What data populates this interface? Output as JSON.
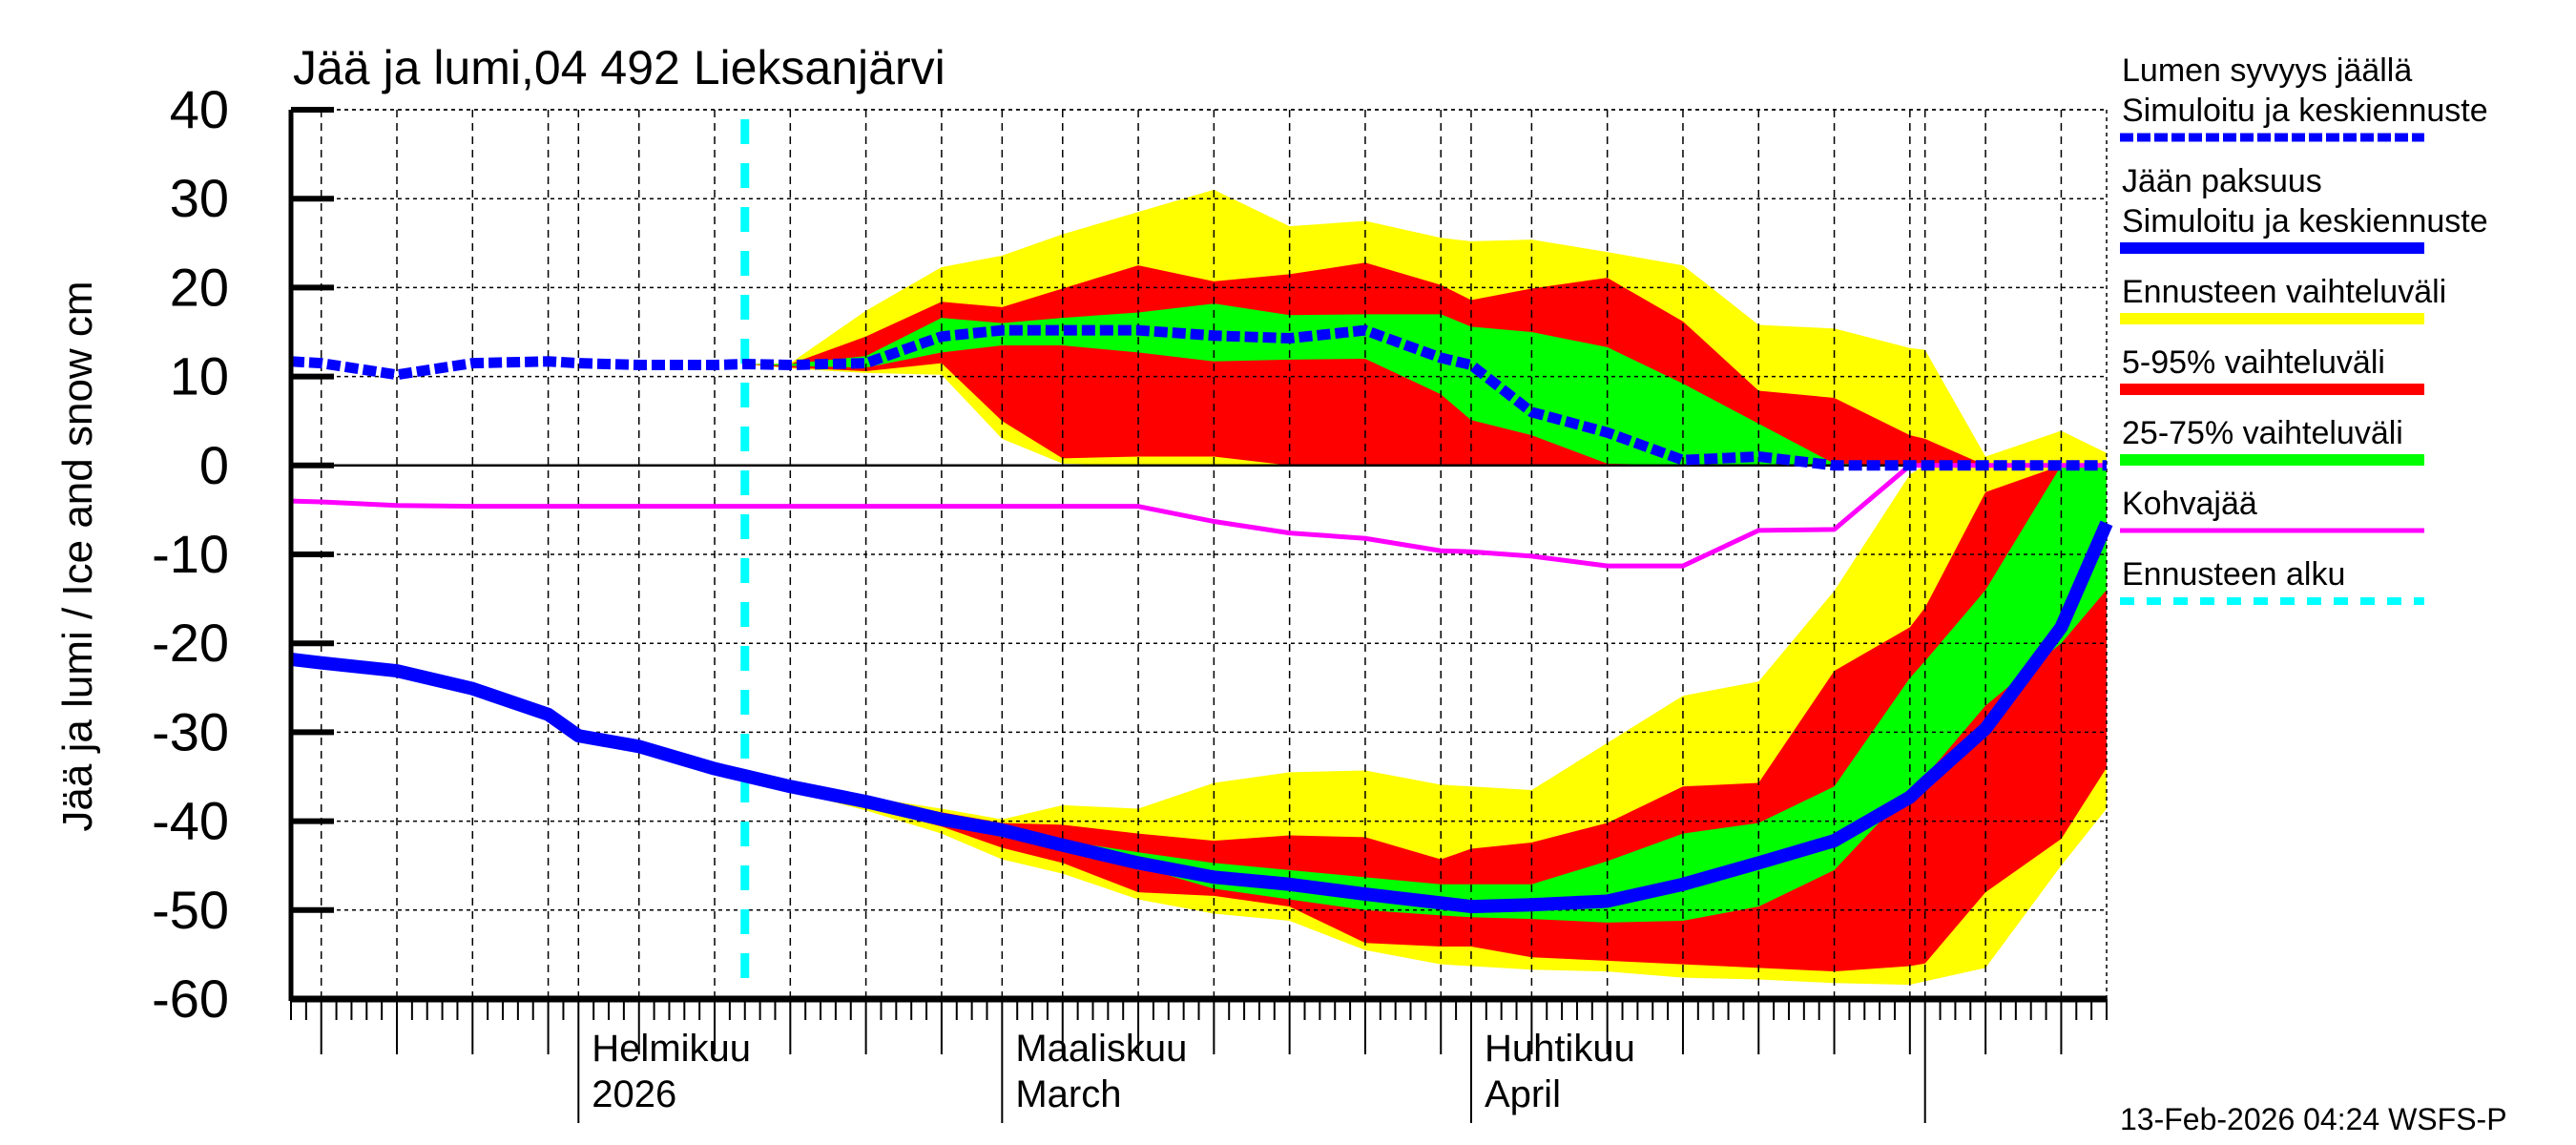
{
  "chart_data": {
    "type": "area",
    "title": "Jää ja lumi,04 492 Lieksanjärvi",
    "ylabel": "Jää ja lumi / Ice and snow    cm",
    "ylim": [
      -60,
      40
    ],
    "yticks": [
      "40",
      "30",
      "20",
      "10",
      "0",
      "-10",
      "-20",
      "-30",
      "-40",
      "-50",
      "-60"
    ],
    "xlim": [
      "2026-01-13",
      "2026-05-13"
    ],
    "grid": true,
    "legend_placement": "right",
    "month_labels": [
      {
        "date": "2026-02-01",
        "line1": "Helmikuu",
        "line2": "2026"
      },
      {
        "date": "2026-03-01",
        "line1": "Maaliskuu",
        "line2": "March"
      },
      {
        "date": "2026-04-01",
        "line1": "Huhtikuu",
        "line2": "April"
      }
    ],
    "forecast_start": "2026-02-12",
    "x": [
      "2026-01-13",
      "2026-01-15",
      "2026-01-20",
      "2026-01-25",
      "2026-01-30",
      "2026-02-01",
      "2026-02-05",
      "2026-02-10",
      "2026-02-12",
      "2026-02-15",
      "2026-02-20",
      "2026-02-25",
      "2026-03-01",
      "2026-03-05",
      "2026-03-10",
      "2026-03-15",
      "2026-03-20",
      "2026-03-25",
      "2026-03-30",
      "2026-04-01",
      "2026-04-05",
      "2026-04-10",
      "2026-04-15",
      "2026-04-20",
      "2026-04-25",
      "2026-04-30",
      "2026-05-01",
      "2026-05-05",
      "2026-05-10",
      "2026-05-13"
    ],
    "snow": {
      "mean": [
        11.7,
        11.5,
        10.2,
        11.5,
        11.7,
        11.5,
        11.3,
        11.3,
        11.4,
        11.3,
        11.5,
        14.5,
        15.2,
        15.2,
        15.2,
        14.6,
        14.3,
        15.2,
        12.1,
        11.3,
        6.0,
        3.7,
        0.6,
        1.0,
        0,
        0,
        0,
        0,
        0,
        0
      ],
      "range_upper": [
        null,
        null,
        null,
        null,
        null,
        null,
        null,
        null,
        11.4,
        11.5,
        17.4,
        22.3,
        23.6,
        26,
        28.5,
        31,
        26.9,
        27.5,
        25.6,
        25.2,
        25.4,
        24,
        22.5,
        15.8,
        15.4,
        13.2,
        13,
        1,
        3.9,
        1.4
      ],
      "p95": [
        null,
        null,
        null,
        null,
        null,
        null,
        null,
        null,
        11.4,
        11.4,
        14.5,
        18.4,
        17.8,
        19.9,
        22.5,
        20.7,
        21.5,
        22.8,
        20.3,
        18.6,
        19.9,
        21.1,
        16.2,
        8.4,
        7.6,
        3.4,
        3,
        0,
        0,
        0
      ],
      "p75": [
        null,
        null,
        null,
        null,
        null,
        null,
        null,
        null,
        11.4,
        11.4,
        12.3,
        16.6,
        16,
        16.6,
        17.2,
        18.2,
        16.9,
        17,
        17,
        15.6,
        15,
        13.3,
        9.2,
        4.7,
        0.2,
        0,
        0,
        0,
        0,
        0
      ],
      "p25": [
        null,
        null,
        null,
        null,
        null,
        null,
        null,
        null,
        11.4,
        11.2,
        11,
        12.7,
        13.5,
        13.5,
        12.7,
        11.7,
        11.9,
        12,
        8,
        5.1,
        3.4,
        0.2,
        0,
        0,
        0,
        0,
        0,
        0,
        0,
        0
      ],
      "p5": [
        null,
        null,
        null,
        null,
        null,
        null,
        null,
        null,
        11.4,
        11,
        10.6,
        11.5,
        5,
        0.8,
        1,
        1,
        0,
        0,
        0,
        0,
        0,
        0,
        0,
        0,
        0,
        0,
        0,
        0,
        0,
        0
      ],
      "range_lower": [
        null,
        null,
        null,
        null,
        null,
        null,
        null,
        null,
        11.4,
        10.9,
        10.4,
        10.2,
        3,
        0.2,
        0,
        0,
        0,
        0,
        0,
        0,
        0,
        0,
        0,
        0,
        0,
        0,
        0,
        0,
        0,
        0
      ]
    },
    "ice": {
      "mean": [
        -21.8,
        -22.2,
        -23.1,
        -25.1,
        -28,
        -30.4,
        -31.6,
        -34.1,
        -34.9,
        -36.1,
        -37.8,
        -39.8,
        -41,
        -42.7,
        -44.7,
        -46.3,
        -47.1,
        -48.2,
        -49.2,
        -49.6,
        -49.4,
        -49,
        -47.1,
        -44.7,
        -42.2,
        -37.3,
        -35.7,
        -29.6,
        -18.2,
        -6.5
      ],
      "range_upper": [
        null,
        null,
        null,
        null,
        null,
        null,
        null,
        null,
        -34.9,
        -35.8,
        -37.3,
        -38.6,
        -39.8,
        -38.2,
        -38.6,
        -35.7,
        -34.5,
        -34.3,
        -35.9,
        -36.1,
        -36.5,
        -31.2,
        -25.9,
        -24.3,
        -14.1,
        -1,
        0,
        0,
        0,
        0
      ],
      "p95": [
        null,
        null,
        null,
        null,
        null,
        null,
        null,
        null,
        -34.9,
        -35.9,
        -37.5,
        -39,
        -40.2,
        -40.4,
        -41.4,
        -42.2,
        -41.6,
        -41.8,
        -44.3,
        -43.1,
        -42.4,
        -40.2,
        -36.1,
        -35.7,
        -23.1,
        -18.2,
        -16,
        -3,
        0,
        0
      ],
      "p75": [
        null,
        null,
        null,
        null,
        null,
        null,
        null,
        null,
        -34.9,
        -36,
        -37.7,
        -39.4,
        -40.6,
        -42.2,
        -43.5,
        -44.7,
        -45.5,
        -46.3,
        -47.1,
        -47.1,
        -47.1,
        -44.5,
        -41.4,
        -40.2,
        -36.1,
        -23.9,
        -22,
        -14,
        0,
        0
      ],
      "p25": [
        null,
        null,
        null,
        null,
        null,
        null,
        null,
        null,
        -34.9,
        -36.2,
        -38,
        -40.2,
        -41.8,
        -43,
        -45.1,
        -47.6,
        -48.8,
        -50,
        -50.6,
        -50.8,
        -51,
        -51.4,
        -51.2,
        -49.6,
        -45.5,
        -36.5,
        -35,
        -27,
        -20,
        -14
      ],
      "p5": [
        null,
        null,
        null,
        null,
        null,
        null,
        null,
        null,
        -34.9,
        -36.4,
        -38.4,
        -40.6,
        -43,
        -44.7,
        -48,
        -48.4,
        -49.6,
        -53.7,
        -54.1,
        -54.1,
        -55.3,
        -55.7,
        -56.1,
        -56.5,
        -56.9,
        -56.3,
        -56,
        -48,
        -42,
        -34
      ],
      "range_lower": [
        null,
        null,
        null,
        null,
        null,
        null,
        null,
        null,
        -34.9,
        -36.6,
        -38.8,
        -41.4,
        -44.3,
        -45.9,
        -48.8,
        -50.4,
        -51.2,
        -54.5,
        -56.1,
        -56.3,
        -56.7,
        -56.9,
        -57.6,
        -57.8,
        -58.2,
        -58.4,
        -58,
        -56.5,
        -45,
        -38.6
      ]
    },
    "slush_ice": [
      -4,
      -4.1,
      -4.5,
      -4.6,
      -4.6,
      -4.6,
      -4.6,
      -4.6,
      -4.6,
      -4.6,
      -4.6,
      -4.6,
      -4.6,
      -4.6,
      -4.6,
      -6.3,
      -7.6,
      -8.2,
      -9.6,
      -9.7,
      -10.2,
      -11.3,
      -11.3,
      -7.3,
      -7.2,
      0,
      0,
      0,
      0,
      0
    ],
    "legend": [
      {
        "label1": "Lumen syvyys jäällä",
        "label2": "Simuloitu ja keskiennuste",
        "color": "#0000ff",
        "style": "dashed-thick"
      },
      {
        "label1": "Jään paksuus",
        "label2": "Simuloitu ja keskiennuste",
        "color": "#0000ff",
        "style": "solid-thick"
      },
      {
        "label1": "Ennusteen vaihteluväli",
        "color": "#ffff00",
        "style": "band"
      },
      {
        "label1": "5-95% vaihteluväli",
        "color": "#ff0000",
        "style": "band"
      },
      {
        "label1": "25-75% vaihteluväli",
        "color": "#00ff00",
        "style": "band"
      },
      {
        "label1": "Kohvajää",
        "color": "#ff00ff",
        "style": "line"
      },
      {
        "label1": "Ennusteen alku",
        "color": "#00ffff",
        "style": "dashed"
      }
    ],
    "footer": "13-Feb-2026 04:24 WSFS-P"
  }
}
